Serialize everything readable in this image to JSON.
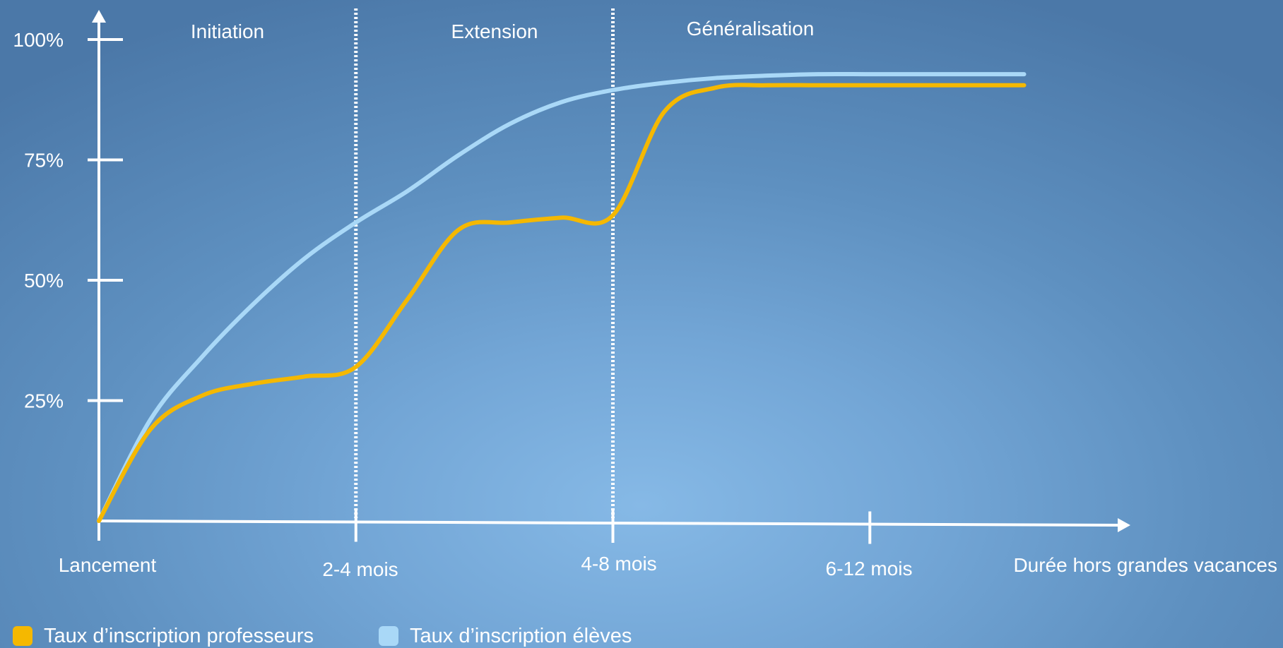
{
  "chart_data": {
    "type": "line",
    "ylabel": "",
    "xlabel": "Durée hors grandes vacances",
    "y_ticks": [
      "25%",
      "50%",
      "75%",
      "100%"
    ],
    "ylim": [
      0,
      100
    ],
    "x_ticks": [
      "Lancement",
      "2-4 mois",
      "4-8 mois",
      "6-12 mois"
    ],
    "phases": [
      "Initiation",
      "Extension",
      "Généralisation"
    ],
    "x": [
      0,
      0.2,
      0.4,
      0.6,
      0.8,
      1.0,
      1.2,
      1.4,
      1.6,
      1.8,
      2.0,
      2.2,
      2.4,
      2.6,
      2.8,
      3.0,
      3.2,
      3.4,
      3.6
    ],
    "series": [
      {
        "name": "Taux d’inscription professeurs",
        "color": "#f5b800",
        "values": [
          0,
          19,
          26,
          28.5,
          30,
          32,
          46,
          60.5,
          62,
          63,
          63.5,
          85,
          90,
          90.5,
          90.5,
          90.5,
          90.5,
          90.5,
          90.5
        ]
      },
      {
        "name": "Taux d’inscription élèves",
        "color": "#a9d8f7",
        "values": [
          0,
          21,
          34,
          45,
          54.5,
          62,
          68.5,
          76,
          82.5,
          87,
          89.5,
          91,
          92,
          92.5,
          92.8,
          92.8,
          92.8,
          92.8,
          92.8
        ]
      }
    ]
  },
  "legend": {
    "teachers": "Taux d’inscription professeurs",
    "students": "Taux d’inscription élèves"
  },
  "colors": {
    "teachers": "#f5b800",
    "students": "#a9d8f7",
    "axis": "#ffffff"
  }
}
